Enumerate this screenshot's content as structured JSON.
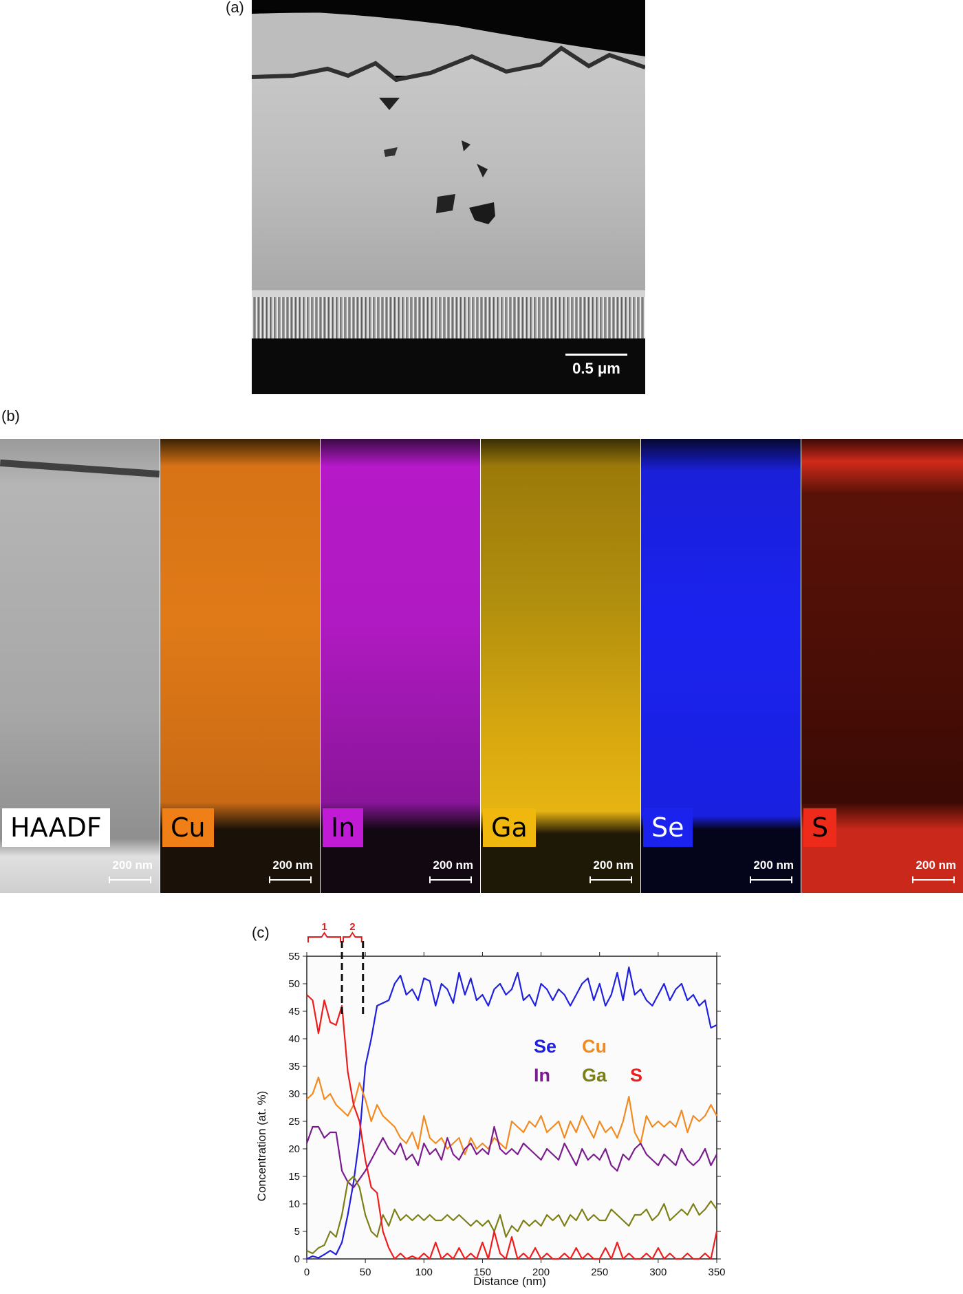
{
  "panels": {
    "a": "(a)",
    "b": "(b)",
    "c": "(c)"
  },
  "image_a": {
    "scale_label": "0.5 μm"
  },
  "maps": [
    {
      "label": "HAADF",
      "scale_label": "200 nm",
      "color": "#ffffff",
      "label_text_color": "#000000"
    },
    {
      "label": "Cu",
      "scale_label": "200 nm",
      "color": "#f07f17",
      "label_text_color": "#000000"
    },
    {
      "label": "In",
      "scale_label": "200 nm",
      "color": "#c21bd6",
      "label_text_color": "#000000"
    },
    {
      "label": "Ga",
      "scale_label": "200 nm",
      "color": "#f0b70f",
      "label_text_color": "#000000"
    },
    {
      "label": "Se",
      "scale_label": "200 nm",
      "color": "#1b22ee",
      "label_text_color": "#ffffff"
    },
    {
      "label": "S",
      "scale_label": "200 nm",
      "color": "#ee2b1b",
      "label_text_color": "#000000"
    }
  ],
  "chart_data": {
    "type": "line",
    "xlabel": "Distance (nm)",
    "ylabel": "Concentration (at. %)",
    "xlim": [
      0,
      350
    ],
    "ylim": [
      0,
      55
    ],
    "xticks": [
      0,
      50,
      100,
      150,
      200,
      250,
      300,
      350
    ],
    "yticks": [
      0,
      5,
      10,
      15,
      20,
      25,
      30,
      35,
      40,
      45,
      50,
      55
    ],
    "region_markers": [
      {
        "label": "1",
        "x_start": 0,
        "x_end": 30
      },
      {
        "label": "2",
        "x_start": 30,
        "x_end": 48
      }
    ],
    "dashed_lines_x": [
      30,
      48
    ],
    "legend": [
      {
        "name": "Se",
        "color": "#1f1fe0",
        "row": 0,
        "col": 0
      },
      {
        "name": "Cu",
        "color": "#f28a1f",
        "row": 0,
        "col": 1
      },
      {
        "name": "In",
        "color": "#7b1b8f",
        "row": 1,
        "col": 0
      },
      {
        "name": "Ga",
        "color": "#7c7f16",
        "row": 1,
        "col": 1
      },
      {
        "name": "S",
        "color": "#ee1c1c",
        "row": 1,
        "col": 2
      }
    ],
    "series": [
      {
        "name": "Se",
        "color": "#1f1fe0",
        "x": [
          0,
          5,
          10,
          15,
          20,
          25,
          30,
          35,
          40,
          45,
          50,
          55,
          60,
          65,
          70,
          75,
          80,
          85,
          90,
          95,
          100,
          105,
          110,
          115,
          120,
          125,
          130,
          135,
          140,
          145,
          150,
          155,
          160,
          165,
          170,
          175,
          180,
          185,
          190,
          195,
          200,
          205,
          210,
          215,
          220,
          225,
          230,
          235,
          240,
          245,
          250,
          255,
          260,
          265,
          270,
          275,
          280,
          285,
          290,
          295,
          300,
          305,
          310,
          315,
          320,
          325,
          330,
          335,
          340,
          345,
          350
        ],
        "y": [
          0,
          0.5,
          0.2,
          0.8,
          1.5,
          0.8,
          3,
          8,
          14,
          22,
          35,
          40,
          46,
          46.5,
          47,
          50,
          51.5,
          48,
          49,
          47,
          51,
          50.5,
          46,
          50,
          49,
          46.5,
          52,
          48,
          51,
          47,
          48,
          46,
          49,
          50,
          48,
          49,
          52,
          47,
          48,
          46,
          50,
          49,
          47,
          49,
          48,
          46,
          48,
          50,
          51,
          47,
          50,
          46,
          48,
          52,
          47,
          53,
          48,
          49,
          47,
          46,
          48,
          50,
          47,
          49,
          50,
          47,
          48,
          46,
          47,
          42,
          42.5
        ]
      },
      {
        "name": "Cu",
        "color": "#f28a1f",
        "x": [
          0,
          5,
          10,
          15,
          20,
          25,
          30,
          35,
          40,
          45,
          50,
          55,
          60,
          65,
          70,
          75,
          80,
          85,
          90,
          95,
          100,
          105,
          110,
          115,
          120,
          125,
          130,
          135,
          140,
          145,
          150,
          155,
          160,
          165,
          170,
          175,
          180,
          185,
          190,
          195,
          200,
          205,
          210,
          215,
          220,
          225,
          230,
          235,
          240,
          245,
          250,
          255,
          260,
          265,
          270,
          275,
          280,
          285,
          290,
          295,
          300,
          305,
          310,
          315,
          320,
          325,
          330,
          335,
          340,
          345,
          350
        ],
        "y": [
          29,
          30,
          33,
          29,
          30,
          28,
          27,
          26,
          28,
          32,
          29,
          25,
          28,
          26,
          25,
          24,
          22,
          21,
          23,
          20,
          26,
          22,
          21,
          22,
          20,
          21,
          22,
          19,
          22,
          20,
          21,
          20,
          22,
          21,
          20,
          25,
          24,
          23,
          25,
          24,
          26,
          23,
          24,
          25,
          22,
          25,
          23,
          26,
          24,
          22,
          25,
          23,
          24,
          22,
          25,
          29.5,
          23,
          21,
          26,
          24,
          25,
          24,
          25,
          24,
          27,
          23,
          26,
          25,
          26,
          28,
          26
        ]
      },
      {
        "name": "In",
        "color": "#7b1b8f",
        "x": [
          0,
          5,
          10,
          15,
          20,
          25,
          30,
          35,
          40,
          45,
          50,
          55,
          60,
          65,
          70,
          75,
          80,
          85,
          90,
          95,
          100,
          105,
          110,
          115,
          120,
          125,
          130,
          135,
          140,
          145,
          150,
          155,
          160,
          165,
          170,
          175,
          180,
          185,
          190,
          195,
          200,
          205,
          210,
          215,
          220,
          225,
          230,
          235,
          240,
          245,
          250,
          255,
          260,
          265,
          270,
          275,
          280,
          285,
          290,
          295,
          300,
          305,
          310,
          315,
          320,
          325,
          330,
          335,
          340,
          345,
          350
        ],
        "y": [
          21,
          24,
          24,
          22,
          23,
          23,
          16,
          14,
          13,
          14.5,
          16,
          18,
          20,
          22,
          20,
          19,
          21,
          18,
          19,
          17,
          21,
          19,
          20,
          18,
          22,
          19,
          18,
          20,
          21,
          19,
          20,
          19,
          24,
          20,
          19,
          20,
          19,
          21,
          20,
          19,
          18,
          20,
          19,
          18,
          21,
          19,
          17,
          20,
          18,
          19,
          18,
          20,
          17,
          16,
          19,
          18,
          20,
          21,
          19,
          18,
          17,
          19,
          18,
          17,
          20,
          18,
          17,
          18,
          20,
          17,
          19
        ]
      },
      {
        "name": "Ga",
        "color": "#7c7f16",
        "x": [
          0,
          5,
          10,
          15,
          20,
          25,
          30,
          35,
          40,
          45,
          50,
          55,
          60,
          65,
          70,
          75,
          80,
          85,
          90,
          95,
          100,
          105,
          110,
          115,
          120,
          125,
          130,
          135,
          140,
          145,
          150,
          155,
          160,
          165,
          170,
          175,
          180,
          185,
          190,
          195,
          200,
          205,
          210,
          215,
          220,
          225,
          230,
          235,
          240,
          245,
          250,
          255,
          260,
          265,
          270,
          275,
          280,
          285,
          290,
          295,
          300,
          305,
          310,
          315,
          320,
          325,
          330,
          335,
          340,
          345,
          350
        ],
        "y": [
          1.5,
          1,
          2,
          2.5,
          5,
          4,
          8,
          14,
          15,
          13,
          8,
          5,
          4,
          8,
          6,
          9,
          7,
          8,
          7,
          8,
          7,
          8,
          7,
          7,
          8,
          7,
          8,
          7,
          6,
          7,
          6,
          7,
          5,
          8,
          4,
          6,
          5,
          7,
          6,
          7,
          6,
          8,
          7,
          8,
          6,
          8,
          7,
          9,
          7,
          8,
          7,
          7,
          9,
          8,
          7,
          6,
          8,
          8,
          9,
          7,
          8,
          10,
          7,
          8,
          9,
          8,
          10,
          8,
          9,
          10.5,
          9
        ]
      },
      {
        "name": "S",
        "color": "#ee1c1c",
        "x": [
          0,
          5,
          10,
          15,
          20,
          25,
          30,
          35,
          40,
          45,
          50,
          55,
          60,
          65,
          70,
          75,
          80,
          85,
          90,
          95,
          100,
          105,
          110,
          115,
          120,
          125,
          130,
          135,
          140,
          145,
          150,
          155,
          160,
          165,
          170,
          175,
          180,
          185,
          190,
          195,
          200,
          205,
          210,
          215,
          220,
          225,
          230,
          235,
          240,
          245,
          250,
          255,
          260,
          265,
          270,
          275,
          280,
          285,
          290,
          295,
          300,
          305,
          310,
          315,
          320,
          325,
          330,
          335,
          340,
          345,
          350
        ],
        "y": [
          48,
          47,
          41,
          47,
          43,
          42.5,
          46,
          34,
          28,
          25,
          18,
          13,
          12,
          5,
          2,
          0,
          1,
          0,
          0.5,
          0,
          1,
          0,
          3,
          0,
          1,
          0,
          2,
          0,
          1,
          0,
          3,
          0,
          5,
          1,
          0,
          4,
          0,
          1,
          0,
          2,
          0,
          1,
          0,
          0,
          1,
          0,
          2,
          0,
          1,
          0,
          0,
          2,
          0,
          3,
          0,
          1,
          0,
          0,
          1,
          0,
          2,
          0,
          1,
          0,
          0,
          1,
          0,
          0,
          1,
          0,
          5
        ]
      }
    ]
  }
}
